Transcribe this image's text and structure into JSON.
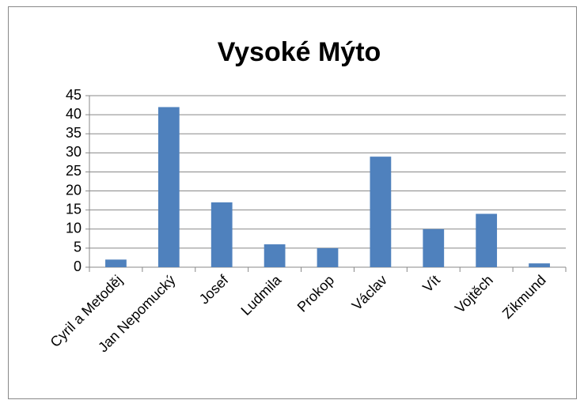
{
  "chart_data": {
    "type": "bar",
    "title": "Vysoké Mýto",
    "categories": [
      "Cyril a Metoděj",
      "Jan Nepomucký",
      "Josef",
      "Ludmila",
      "Prokop",
      "Václav",
      "Vít",
      "Vojtěch",
      "Zikmund"
    ],
    "values": [
      2,
      42,
      17,
      6,
      5,
      29,
      10,
      14,
      1
    ],
    "color": "#4f81bd",
    "ylim": [
      0,
      45
    ],
    "yticks": [
      0,
      5,
      10,
      15,
      20,
      25,
      30,
      35,
      40,
      45
    ],
    "grid": true
  }
}
